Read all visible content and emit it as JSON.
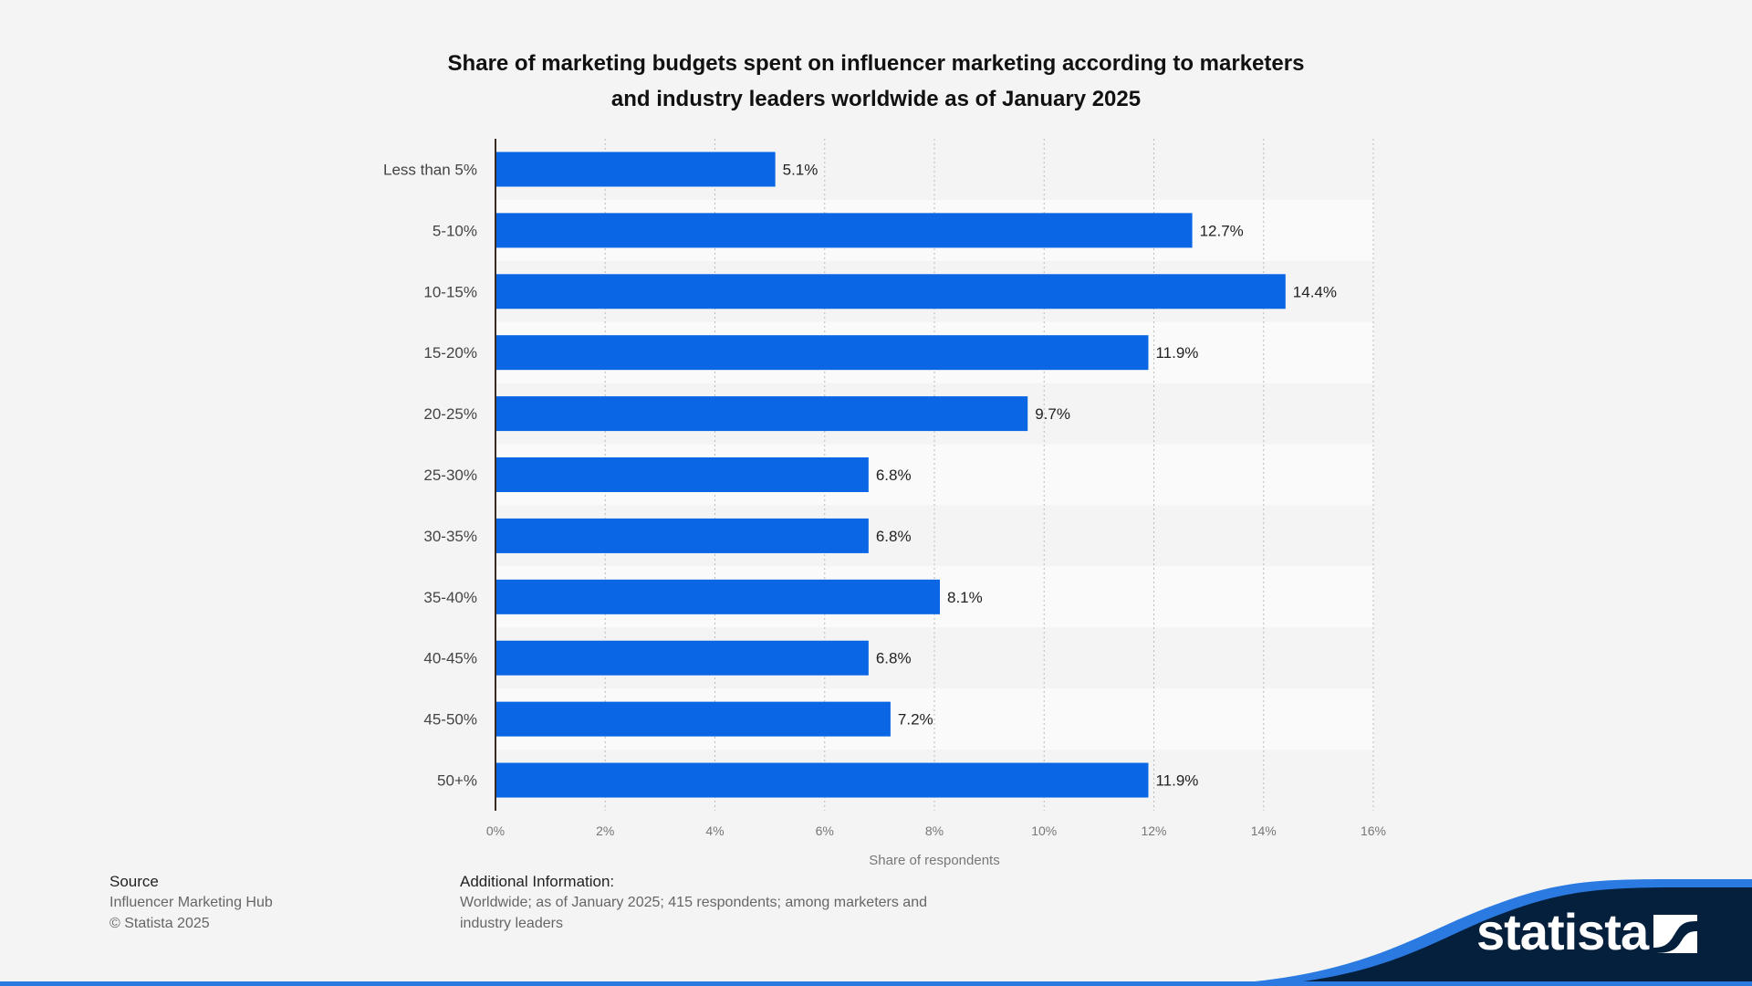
{
  "chart_data": {
    "type": "bar",
    "orientation": "horizontal",
    "title": "Share of marketing budgets spent on influencer marketing according to marketers and industry leaders worldwide as of January 2025",
    "title_lines": [
      "Share of marketing budgets spent on influencer marketing according to marketers",
      "and industry leaders worldwide as of January 2025"
    ],
    "categories": [
      "Less than 5%",
      "5-10%",
      "10-15%",
      "15-20%",
      "20-25%",
      "25-30%",
      "30-35%",
      "35-40%",
      "40-45%",
      "45-50%",
      "50+%"
    ],
    "values": [
      5.1,
      12.7,
      14.4,
      11.9,
      9.7,
      6.8,
      6.8,
      8.1,
      6.8,
      7.2,
      11.9
    ],
    "value_labels": [
      "5.1%",
      "12.7%",
      "14.4%",
      "11.9%",
      "9.7%",
      "6.8%",
      "6.8%",
      "8.1%",
      "6.8%",
      "7.2%",
      "11.9%"
    ],
    "xlabel": "Share of respondents",
    "ylabel": "",
    "xlim": [
      0,
      16
    ],
    "xticks": [
      0,
      2,
      4,
      6,
      8,
      10,
      12,
      14,
      16
    ],
    "xtick_labels": [
      "0%",
      "2%",
      "4%",
      "6%",
      "8%",
      "10%",
      "12%",
      "14%",
      "16%"
    ],
    "grid": true,
    "legend": "none",
    "bar_color": "#0a66e4"
  },
  "footer": {
    "source_heading": "Source",
    "source_lines": [
      "Influencer Marketing Hub",
      "© Statista 2025"
    ],
    "info_heading": "Additional Information:",
    "info_lines": [
      "Worldwide; as of January 2025; 415 respondents; among marketers and",
      "industry leaders"
    ]
  },
  "brand": {
    "name": "statista",
    "dark_color": "#05203d",
    "accent_color": "#2a7ae2"
  }
}
